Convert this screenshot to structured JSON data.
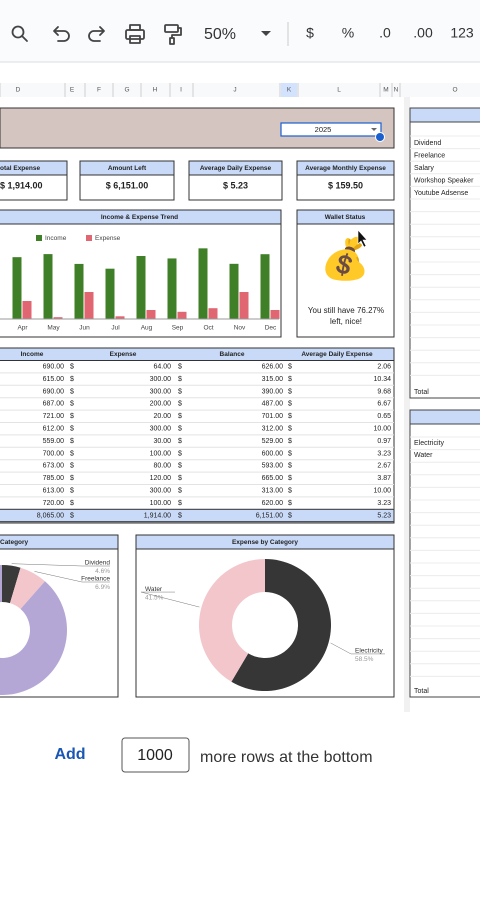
{
  "toolbar": {
    "zoom": "50%",
    "buttons": [
      "$",
      "%",
      ".0",
      ".00",
      "123"
    ]
  },
  "column_headers": [
    "D",
    "E",
    "F",
    "G",
    "H",
    "I",
    "J",
    "K",
    "L",
    "M",
    "N",
    "O"
  ],
  "year": "2025",
  "kpis": [
    {
      "label": "otal Expense",
      "value": "$ 1,914.00"
    },
    {
      "label": "Amount Left",
      "value": "$ 6,151.00"
    },
    {
      "label": "Average Daily Expense",
      "value": "$ 5.23"
    },
    {
      "label": "Average Monthly Expense",
      "value": "$ 159.50"
    }
  ],
  "wallet": {
    "title": "Wallet Status",
    "icon": "💰",
    "message": [
      "You still have 76.27%",
      "left, nice!"
    ]
  },
  "table": {
    "header": [
      "Income",
      "Expense",
      "Balance",
      "Average Daily Expense"
    ],
    "currency": "$",
    "rows": [
      [
        "690.00",
        "64.00",
        "626.00",
        "2.06"
      ],
      [
        "615.00",
        "300.00",
        "315.00",
        "10.34"
      ],
      [
        "690.00",
        "300.00",
        "390.00",
        "9.68"
      ],
      [
        "687.00",
        "200.00",
        "487.00",
        "6.67"
      ],
      [
        "721.00",
        "20.00",
        "701.00",
        "0.65"
      ],
      [
        "612.00",
        "300.00",
        "312.00",
        "10.00"
      ],
      [
        "559.00",
        "30.00",
        "529.00",
        "0.97"
      ],
      [
        "700.00",
        "100.00",
        "600.00",
        "3.23"
      ],
      [
        "673.00",
        "80.00",
        "593.00",
        "2.67"
      ],
      [
        "785.00",
        "120.00",
        "665.00",
        "3.87"
      ],
      [
        "613.00",
        "300.00",
        "313.00",
        "10.00"
      ],
      [
        "720.00",
        "100.00",
        "620.00",
        "3.23"
      ]
    ],
    "total": [
      "8,065.00",
      "1,914.00",
      "6,151.00",
      "5.23"
    ]
  },
  "side_panel": {
    "income_items": [
      "Dividend",
      "Freelance",
      "Salary",
      "Workshop Speaker",
      "Youtube Adsense"
    ],
    "expense_items": [
      "Electricity",
      "Water"
    ],
    "total_label": "Total"
  },
  "footer": {
    "add": "Add",
    "rows": "1000",
    "text": "more rows at the bottom"
  },
  "chart_data": [
    {
      "type": "bar",
      "title": "Income & Expense Trend",
      "categories": [
        "Apr",
        "May",
        "Jun",
        "Jul",
        "Aug",
        "Sep",
        "Oct",
        "Nov",
        "Dec"
      ],
      "series": [
        {
          "name": "Income",
          "color": "#3f7f27",
          "values": [
            687,
            721,
            612,
            559,
            700,
            673,
            785,
            613,
            720
          ]
        },
        {
          "name": "Expense",
          "color": "#e06671",
          "values": [
            200,
            20,
            300,
            30,
            100,
            80,
            120,
            300,
            100
          ]
        }
      ],
      "ylim": [
        0,
        800
      ]
    },
    {
      "type": "pie",
      "title": "Category",
      "labels": [
        "Dividend",
        "Freelance",
        null
      ],
      "values": [
        4.6,
        6.9,
        88.5
      ],
      "value_labels": [
        "4.6%",
        "6.9%",
        null
      ],
      "colors": [
        "#3a3a3a",
        "#f2c6cb",
        "#b4a7d6"
      ]
    },
    {
      "type": "pie",
      "title": "Expense by Category",
      "labels": [
        "Electricity",
        "Water"
      ],
      "values": [
        58.5,
        41.5
      ],
      "value_labels": [
        "58.5%",
        "41.5%"
      ],
      "colors": [
        "#363636",
        "#f2c6cb"
      ]
    }
  ]
}
